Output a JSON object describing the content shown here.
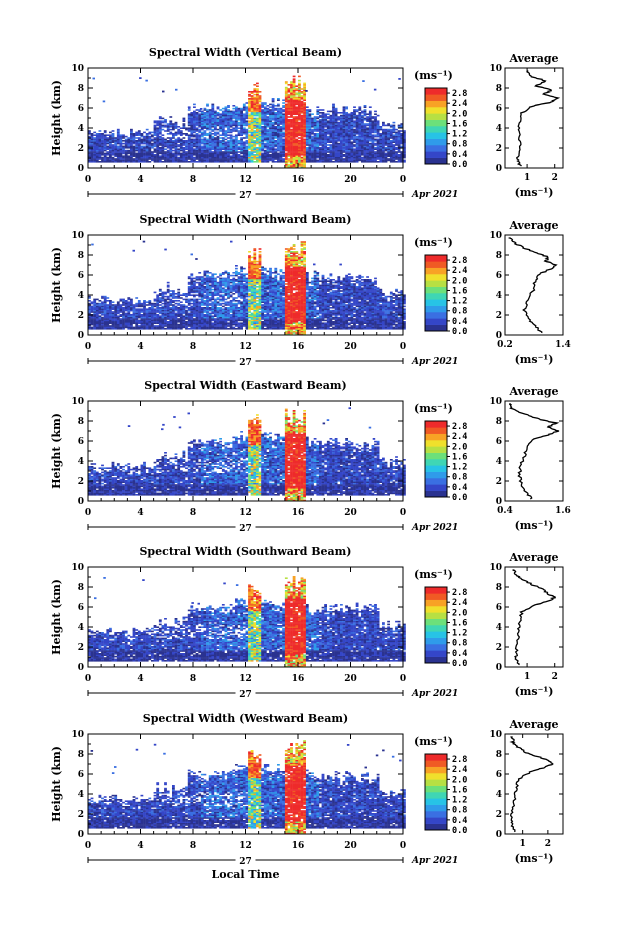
{
  "chart_data": [
    {
      "type": "heatmap",
      "title": "Spectral Width (Vertical Beam)",
      "ylabel": "Height (km)",
      "ylim": [
        0,
        10
      ],
      "yticks": [
        "0",
        "2",
        "4",
        "6",
        "8",
        "10"
      ],
      "xlim": [
        0,
        24
      ],
      "xticks": [
        "0",
        "4",
        "8",
        "12",
        "16",
        "20",
        "0"
      ],
      "day_label": "27",
      "date_label": "Apr 2021",
      "colorbar": {
        "unit": "(ms⁻¹)",
        "ticks": [
          "0.0",
          "0.4",
          "0.8",
          "1.2",
          "1.6",
          "2.0",
          "2.4",
          "2.8"
        ],
        "range": [
          0,
          3.0
        ]
      },
      "profile": {
        "title": "Average",
        "xlabel": "(ms⁻¹)",
        "xticks": [
          "1",
          "2"
        ],
        "xlim": [
          0.2,
          2.3
        ],
        "ylim": [
          0,
          10
        ],
        "heights": [
          0.2,
          0.8,
          1.5,
          2.5,
          3.5,
          4.5,
          5.5,
          6.2,
          6.6,
          7.0,
          7.4,
          7.8,
          8.2,
          8.7,
          9.2,
          9.7
        ],
        "values": [
          0.75,
          0.65,
          0.7,
          0.75,
          0.7,
          0.72,
          0.8,
          1.2,
          1.9,
          2.1,
          1.6,
          1.9,
          1.3,
          1.7,
          1.1,
          1.0
        ]
      }
    },
    {
      "type": "heatmap",
      "title": "Spectral Width (Northward Beam)",
      "ylabel": "Height (km)",
      "ylim": [
        0,
        10
      ],
      "yticks": [
        "0",
        "2",
        "4",
        "6",
        "8",
        "10"
      ],
      "xlim": [
        0,
        24
      ],
      "xticks": [
        "0",
        "4",
        "8",
        "12",
        "16",
        "20",
        "0"
      ],
      "day_label": "27",
      "date_label": "Apr 2021",
      "colorbar": {
        "unit": "(ms⁻¹)",
        "ticks": [
          "0.0",
          "0.4",
          "0.8",
          "1.2",
          "1.6",
          "2.0",
          "2.4",
          "2.8"
        ],
        "range": [
          0,
          3.0
        ]
      },
      "profile": {
        "title": "Average",
        "xlabel": "(ms⁻¹)",
        "xticks": [
          "0.2",
          "1.4"
        ],
        "xlim": [
          0.2,
          1.4
        ],
        "ylim": [
          0,
          10
        ],
        "heights": [
          0.2,
          0.8,
          1.5,
          2.5,
          3.5,
          4.5,
          5.5,
          6.2,
          6.6,
          7.0,
          7.4,
          7.8,
          8.2,
          8.7,
          9.2,
          9.7
        ],
        "values": [
          0.95,
          0.85,
          0.7,
          0.6,
          0.68,
          0.78,
          0.82,
          0.95,
          1.15,
          1.25,
          1.05,
          1.1,
          0.85,
          0.6,
          0.4,
          0.3
        ]
      }
    },
    {
      "type": "heatmap",
      "title": "Spectral Width (Eastward Beam)",
      "ylabel": "Height (km)",
      "ylim": [
        0,
        10
      ],
      "yticks": [
        "0",
        "2",
        "4",
        "6",
        "8",
        "10"
      ],
      "xlim": [
        0,
        24
      ],
      "xticks": [
        "0",
        "4",
        "8",
        "12",
        "16",
        "20",
        "0"
      ],
      "day_label": "27",
      "date_label": "Apr 2021",
      "colorbar": {
        "unit": "(ms⁻¹)",
        "ticks": [
          "0.0",
          "0.4",
          "0.8",
          "1.2",
          "1.6",
          "2.0",
          "2.4",
          "2.8"
        ],
        "range": [
          0,
          3.0
        ]
      },
      "profile": {
        "title": "Average",
        "xlabel": "(ms⁻¹)",
        "xticks": [
          "0.4",
          "1.6"
        ],
        "xlim": [
          0.4,
          1.6
        ],
        "ylim": [
          0,
          10
        ],
        "heights": [
          0.2,
          0.8,
          1.5,
          2.5,
          3.5,
          4.5,
          5.5,
          6.2,
          6.6,
          7.0,
          7.4,
          7.8,
          8.2,
          8.7,
          9.2,
          9.7
        ],
        "values": [
          0.95,
          0.85,
          0.75,
          0.7,
          0.72,
          0.8,
          0.85,
          1.0,
          1.3,
          1.5,
          1.3,
          1.45,
          1.1,
          0.8,
          0.55,
          0.5
        ]
      }
    },
    {
      "type": "heatmap",
      "title": "Spectral Width (Southward Beam)",
      "ylabel": "Height (km)",
      "ylim": [
        0,
        10
      ],
      "yticks": [
        "0",
        "2",
        "4",
        "6",
        "8",
        "10"
      ],
      "xlim": [
        0,
        24
      ],
      "xticks": [
        "0",
        "4",
        "8",
        "12",
        "16",
        "20",
        "0"
      ],
      "day_label": "27",
      "date_label": "Apr 2021",
      "colorbar": {
        "unit": "(ms⁻¹)",
        "ticks": [
          "0.0",
          "0.4",
          "0.8",
          "1.2",
          "1.6",
          "2.0",
          "2.4",
          "2.8"
        ],
        "range": [
          0,
          3.0
        ]
      },
      "profile": {
        "title": "Average",
        "xlabel": "(ms⁻¹)",
        "xticks": [
          "1",
          "2"
        ],
        "xlim": [
          0.2,
          2.3
        ],
        "ylim": [
          0,
          10
        ],
        "heights": [
          0.2,
          0.8,
          1.5,
          2.5,
          3.5,
          4.5,
          5.5,
          6.2,
          6.6,
          7.0,
          7.4,
          7.8,
          8.2,
          8.7,
          9.2,
          9.7
        ],
        "values": [
          0.7,
          0.6,
          0.6,
          0.65,
          0.7,
          0.72,
          0.8,
          1.3,
          1.8,
          2.0,
          1.7,
          1.6,
          1.2,
          0.9,
          0.6,
          0.5
        ]
      }
    },
    {
      "type": "heatmap",
      "title": "Spectral Width (Westward Beam)",
      "ylabel": "Height (km)",
      "xlabel": "Local Time",
      "ylim": [
        0,
        10
      ],
      "yticks": [
        "0",
        "2",
        "4",
        "6",
        "8",
        "10"
      ],
      "xlim": [
        0,
        24
      ],
      "xticks": [
        "0",
        "4",
        "8",
        "12",
        "16",
        "20",
        "0"
      ],
      "day_label": "27",
      "date_label": "Apr 2021",
      "colorbar": {
        "unit": "(ms⁻¹)",
        "ticks": [
          "0.0",
          "0.4",
          "0.8",
          "1.2",
          "1.6",
          "2.0",
          "2.4",
          "2.8"
        ],
        "range": [
          0,
          3.0
        ]
      },
      "profile": {
        "title": "Average",
        "xlabel": "(ms⁻¹)",
        "xticks": [
          "1",
          "2"
        ],
        "xlim": [
          0.3,
          2.6
        ],
        "ylim": [
          0,
          10
        ],
        "heights": [
          0.2,
          0.8,
          1.5,
          2.5,
          3.5,
          4.5,
          5.5,
          6.2,
          6.6,
          7.0,
          7.4,
          7.8,
          8.2,
          8.7,
          9.2,
          9.7
        ],
        "values": [
          0.7,
          0.6,
          0.55,
          0.6,
          0.7,
          0.75,
          0.85,
          1.3,
          1.8,
          2.2,
          2.0,
          1.5,
          1.1,
          0.8,
          0.6,
          0.6
        ]
      }
    }
  ]
}
